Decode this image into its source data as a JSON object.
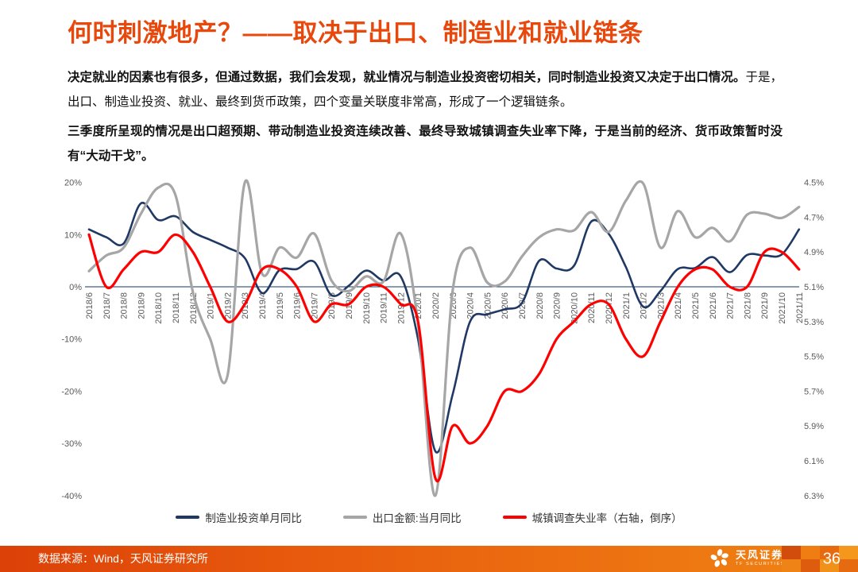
{
  "title": "何时刺激地产？——取决于出口、制造业和就业链条",
  "paragraphs": {
    "p1_bold": "决定就业的因素也有很多，但通过数据，我们会发现，就业情况与制造业投资密切相关，同时制造业投资又决定于出口情况。",
    "p1_rest": "于是，出口、制造业投资、就业、最终到货币政策，四个变量关联度非常高，形成了一个逻辑链条。",
    "p2": "三季度所呈现的情况是出口超预期、带动制造业投资连续改善、最终导致城镇调查失业率下降，于是当前的经济、货币政策暂时没有“大动干戈”。"
  },
  "colors": {
    "accent": "#e8480c",
    "navy": "#1f3864",
    "gray": "#a6a6a6",
    "red": "#ff0000",
    "tick": "#595959",
    "footer-left": "#dc4108",
    "footer-right": "#f08414"
  },
  "chart_data": {
    "type": "line",
    "x": [
      "2018/6",
      "2018/7",
      "2018/8",
      "2018/9",
      "2018/10",
      "2018/11",
      "2018/12",
      "2019/1",
      "2019/2",
      "2019/3",
      "2019/4",
      "2019/5",
      "2019/6",
      "2019/7",
      "2019/8",
      "2019/9",
      "2019/10",
      "2019/11",
      "2019/12",
      "2020/1",
      "2020/2",
      "2020/3",
      "2020/4",
      "2020/5",
      "2020/6",
      "2020/7",
      "2020/8",
      "2020/9",
      "2020/10",
      "2020/11",
      "2020/12",
      "2021/1",
      "2021/2",
      "2021/3",
      "2021/4",
      "2021/5",
      "2021/6",
      "2021/7",
      "2021/8",
      "2021/9",
      "2021/10",
      "2021/11"
    ],
    "series": [
      {
        "name": "制造业投资单月同比",
        "axis": "left",
        "color": "#1f3864",
        "values": [
          11,
          9.5,
          8.3,
          16,
          12.8,
          13.5,
          10.5,
          9,
          7.5,
          5.5,
          -1.2,
          3.2,
          3.4,
          4.8,
          -1.6,
          0.2,
          3.1,
          1.2,
          2,
          -10,
          -31.5,
          -20.6,
          -6.7,
          -5.3,
          -4.3,
          -3.1,
          5,
          3.5,
          4,
          12.5,
          10.2,
          3.8,
          -3.8,
          -0.8,
          3.4,
          3.6,
          5.7,
          2.8,
          6.1,
          6,
          6.2,
          11
        ]
      },
      {
        "name": "出口金额:当月同比",
        "axis": "left",
        "color": "#a6a6a6",
        "values": [
          3,
          6,
          7.5,
          14,
          19,
          17.5,
          -1,
          -10,
          -17,
          20,
          2.5,
          7.5,
          5.6,
          10.2,
          1.2,
          -0.8,
          2,
          1,
          10.2,
          -7,
          -40,
          -0.7,
          7.5,
          0.8,
          1,
          5.8,
          9.5,
          11,
          10.8,
          14.3,
          10.5,
          16.5,
          19.8,
          7.5,
          14.5,
          9.5,
          11.3,
          8.7,
          13.8,
          14,
          13.2,
          15.3
        ]
      },
      {
        "name": "城镇调查失业率（右轴，倒序）",
        "axis": "right",
        "color": "#ff0000",
        "values": [
          4.8,
          5.1,
          5.0,
          4.9,
          4.9,
          4.8,
          4.9,
          5.1,
          5.3,
          5.2,
          5.0,
          5.0,
          5.1,
          5.3,
          5.2,
          5.2,
          5.1,
          5.1,
          5.2,
          5.3,
          6.2,
          5.9,
          6.0,
          5.9,
          5.7,
          5.7,
          5.6,
          5.4,
          5.3,
          5.2,
          5.2,
          5.4,
          5.5,
          5.3,
          5.1,
          5.0,
          5.0,
          5.1,
          5.1,
          4.9,
          4.9,
          5.0
        ]
      }
    ],
    "left_axis": {
      "ticks": [
        "20%",
        "10%",
        "0%",
        "-10%",
        "-20%",
        "-30%",
        "-40%"
      ],
      "tick_values": [
        20,
        10,
        0,
        -10,
        -20,
        -30,
        -40
      ],
      "min": -40,
      "max": 20
    },
    "right_axis": {
      "ticks": [
        "4.5%",
        "4.7%",
        "4.9%",
        "5.1%",
        "5.3%",
        "5.5%",
        "5.7%",
        "5.9%",
        "6.1%",
        "6.3%"
      ],
      "tick_values": [
        4.5,
        4.7,
        4.9,
        5.1,
        5.3,
        5.5,
        5.7,
        5.9,
        6.1,
        6.3
      ],
      "min": 4.5,
      "max": 6.3,
      "inverted": true
    },
    "title": "",
    "xlabel": "",
    "ylabel": "",
    "grid": false,
    "legend_position": "bottom"
  },
  "footer": {
    "source": "数据来源：Wind，天风证券研究所",
    "logo_cn": "天风证券",
    "logo_en": "TF SECURITIES",
    "page_number": "36"
  }
}
